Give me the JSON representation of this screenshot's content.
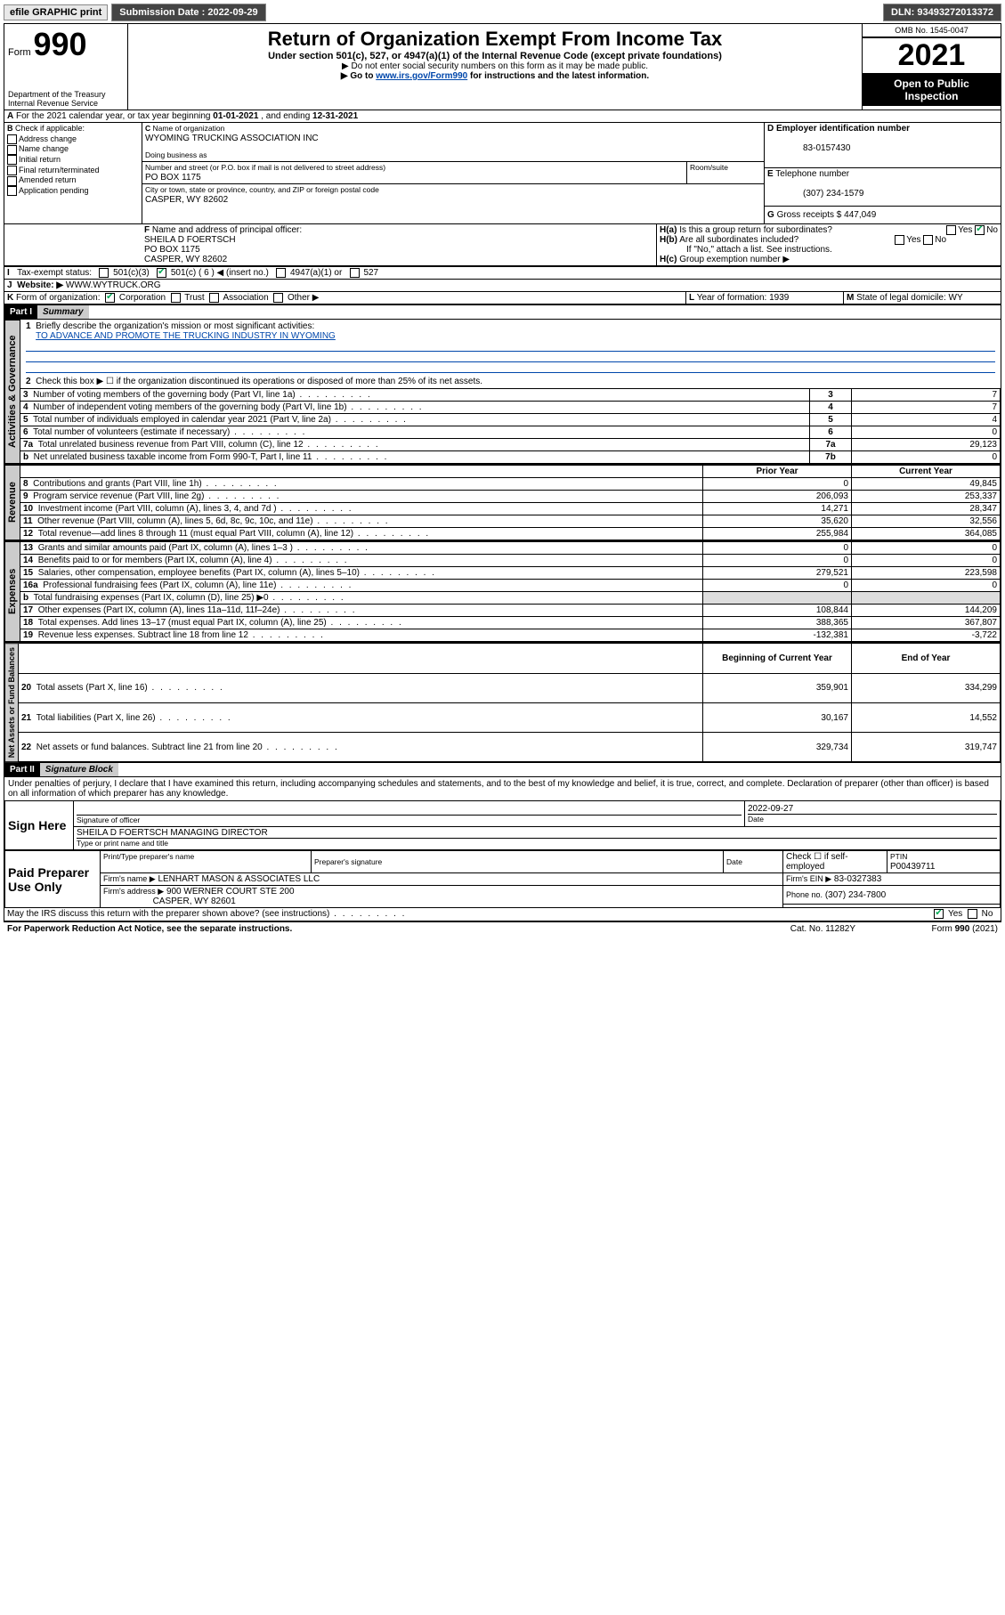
{
  "topbar": {
    "efile": "efile GRAPHIC print",
    "sub_label": "Submission Date :",
    "sub_date": "2022-09-29",
    "dln_label": "DLN:",
    "dln": "93493272013372"
  },
  "header": {
    "form_word": "Form",
    "form_no": "990",
    "title": "Return of Organization Exempt From Income Tax",
    "subtitle": "Under section 501(c), 527, or 4947(a)(1) of the Internal Revenue Code (except private foundations)",
    "note1": "▶ Do not enter social security numbers on this form as it may be made public.",
    "note2_pre": "▶ Go to ",
    "note2_link": "www.irs.gov/Form990",
    "note2_post": " for instructions and the latest information.",
    "dept": "Department of the Treasury",
    "irs": "Internal Revenue Service",
    "omb_label": "OMB No.",
    "omb": "1545-0047",
    "year": "2021",
    "open": "Open to Public Inspection"
  },
  "A": {
    "text_pre": "For the 2021 calendar year, or tax year beginning ",
    "begin": "01-01-2021",
    "mid": " , and ending ",
    "end": "12-31-2021"
  },
  "B": {
    "label": "Check if applicable:",
    "opts": [
      "Address change",
      "Name change",
      "Initial return",
      "Final return/terminated",
      "Amended return",
      "Application pending"
    ]
  },
  "C": {
    "name_label": "Name of organization",
    "name": "WYOMING TRUCKING ASSOCIATION INC",
    "dba_label": "Doing business as",
    "dba": "",
    "street_label": "Number and street (or P.O. box if mail is not delivered to street address)",
    "room_label": "Room/suite",
    "street": "PO BOX 1175",
    "city_label": "City or town, state or province, country, and ZIP or foreign postal code",
    "city": "CASPER, WY  82602"
  },
  "D": {
    "label": "Employer identification number",
    "val": "83-0157430"
  },
  "E": {
    "label": "Telephone number",
    "val": "(307) 234-1579"
  },
  "G": {
    "label": "Gross receipts $",
    "val": "447,049"
  },
  "F": {
    "label": "Name and address of principal officer:",
    "name": "SHEILA D FOERTSCH",
    "street": "PO BOX 1175",
    "city": "CASPER, WY  82602"
  },
  "H": {
    "a": "Is this a group return for subordinates?",
    "b": "Are all subordinates included?",
    "note": "If \"No,\" attach a list. See instructions.",
    "c": "Group exemption number ▶",
    "yes": "Yes",
    "no": "No"
  },
  "I": {
    "label": "Tax-exempt status:",
    "opts": [
      "501(c)(3)",
      "501(c) ( 6 ) ◀ (insert no.)",
      "4947(a)(1) or",
      "527"
    ],
    "checked_idx": 1
  },
  "J": {
    "label": "Website: ▶",
    "val": "WWW.WYTRUCK.ORG"
  },
  "K": {
    "label": "Form of organization:",
    "opts": [
      "Corporation",
      "Trust",
      "Association",
      "Other ▶"
    ],
    "checked_idx": 0
  },
  "L": {
    "label": "Year of formation:",
    "val": "1939"
  },
  "M": {
    "label": "State of legal domicile:",
    "val": "WY"
  },
  "partI": {
    "label": "Part I",
    "title": "Summary"
  },
  "summary": {
    "q1_label": "Briefly describe the organization's mission or most significant activities:",
    "q1_val": "TO ADVANCE AND PROMOTE THE TRUCKING INDUSTRY IN WYOMING",
    "q2": "Check this box ▶ ☐  if the organization discontinued its operations or disposed of more than 25% of its net assets.",
    "rows_a": [
      {
        "n": "3",
        "t": "Number of voting members of the governing body (Part VI, line 1a)",
        "box": "3",
        "v": "7"
      },
      {
        "n": "4",
        "t": "Number of independent voting members of the governing body (Part VI, line 1b)",
        "box": "4",
        "v": "7"
      },
      {
        "n": "5",
        "t": "Total number of individuals employed in calendar year 2021 (Part V, line 2a)",
        "box": "5",
        "v": "4"
      },
      {
        "n": "6",
        "t": "Total number of volunteers (estimate if necessary)",
        "box": "6",
        "v": "0"
      },
      {
        "n": "7a",
        "t": "Total unrelated business revenue from Part VIII, column (C), line 12",
        "box": "7a",
        "v": "29,123"
      },
      {
        "n": "b",
        "t": "Net unrelated business taxable income from Form 990-T, Part I, line 11",
        "box": "7b",
        "v": "0"
      }
    ],
    "col_prior": "Prior Year",
    "col_curr": "Current Year",
    "rows_rev": [
      {
        "n": "8",
        "t": "Contributions and grants (Part VIII, line 1h)",
        "p": "0",
        "c": "49,845"
      },
      {
        "n": "9",
        "t": "Program service revenue (Part VIII, line 2g)",
        "p": "206,093",
        "c": "253,337"
      },
      {
        "n": "10",
        "t": "Investment income (Part VIII, column (A), lines 3, 4, and 7d )",
        "p": "14,271",
        "c": "28,347"
      },
      {
        "n": "11",
        "t": "Other revenue (Part VIII, column (A), lines 5, 6d, 8c, 9c, 10c, and 11e)",
        "p": "35,620",
        "c": "32,556"
      },
      {
        "n": "12",
        "t": "Total revenue—add lines 8 through 11 (must equal Part VIII, column (A), line 12)",
        "p": "255,984",
        "c": "364,085"
      }
    ],
    "rows_exp": [
      {
        "n": "13",
        "t": "Grants and similar amounts paid (Part IX, column (A), lines 1–3 )",
        "p": "0",
        "c": "0"
      },
      {
        "n": "14",
        "t": "Benefits paid to or for members (Part IX, column (A), line 4)",
        "p": "0",
        "c": "0"
      },
      {
        "n": "15",
        "t": "Salaries, other compensation, employee benefits (Part IX, column (A), lines 5–10)",
        "p": "279,521",
        "c": "223,598"
      },
      {
        "n": "16a",
        "t": "Professional fundraising fees (Part IX, column (A), line 11e)",
        "p": "0",
        "c": "0"
      },
      {
        "n": "b",
        "t": "Total fundraising expenses (Part IX, column (D), line 25) ▶0",
        "p": "",
        "c": "",
        "shade": true
      },
      {
        "n": "17",
        "t": "Other expenses (Part IX, column (A), lines 11a–11d, 11f–24e)",
        "p": "108,844",
        "c": "144,209"
      },
      {
        "n": "18",
        "t": "Total expenses. Add lines 13–17 (must equal Part IX, column (A), line 25)",
        "p": "388,365",
        "c": "367,807"
      },
      {
        "n": "19",
        "t": "Revenue less expenses. Subtract line 18 from line 12",
        "p": "-132,381",
        "c": "-3,722"
      }
    ],
    "col_beg": "Beginning of Current Year",
    "col_end": "End of Year",
    "rows_net": [
      {
        "n": "20",
        "t": "Total assets (Part X, line 16)",
        "p": "359,901",
        "c": "334,299"
      },
      {
        "n": "21",
        "t": "Total liabilities (Part X, line 26)",
        "p": "30,167",
        "c": "14,552"
      },
      {
        "n": "22",
        "t": "Net assets or fund balances. Subtract line 21 from line 20",
        "p": "329,734",
        "c": "319,747"
      }
    ],
    "tabs": {
      "gov": "Activities & Governance",
      "rev": "Revenue",
      "exp": "Expenses",
      "net": "Net Assets or Fund Balances"
    }
  },
  "partII": {
    "label": "Part II",
    "title": "Signature Block"
  },
  "sig": {
    "penalty": "Under penalties of perjury, I declare that I have examined this return, including accompanying schedules and statements, and to the best of my knowledge and belief, it is true, correct, and complete. Declaration of preparer (other than officer) is based on all information of which preparer has any knowledge.",
    "sign_here": "Sign Here",
    "sig_officer": "Signature of officer",
    "date_label": "Date",
    "date": "2022-09-27",
    "name_title": "SHEILA D FOERTSCH  MANAGING DIRECTOR",
    "type_name": "Type or print name and title",
    "paid": "Paid Preparer Use Only",
    "prep_name_label": "Print/Type preparer's name",
    "prep_sig_label": "Preparer's signature",
    "check_self": "Check ☐ if self-employed",
    "ptin_label": "PTIN",
    "ptin": "P00439711",
    "firm_name_label": "Firm's name   ▶",
    "firm_name": "LENHART MASON & ASSOCIATES LLC",
    "firm_ein_label": "Firm's EIN ▶",
    "firm_ein": "83-0327383",
    "firm_addr_label": "Firm's address ▶",
    "firm_addr1": "900 WERNER COURT STE 200",
    "firm_addr2": "CASPER, WY  82601",
    "phone_label": "Phone no.",
    "phone": "(307) 234-7800",
    "may_irs": "May the IRS discuss this return with the preparer shown above? (see instructions)",
    "yes": "Yes",
    "no": "No"
  },
  "footer": {
    "pra": "For Paperwork Reduction Act Notice, see the separate instructions.",
    "cat": "Cat. No. 11282Y",
    "form": "Form 990 (2021)"
  }
}
